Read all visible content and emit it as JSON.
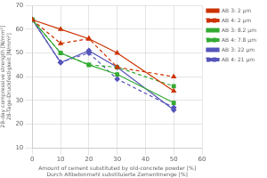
{
  "chart_data": {
    "type": "line",
    "xlabel": "Amount of cement substituted by old-concrete powder [%]\nDurch Altbetonmehl substituierte Zementmenge [%]",
    "ylabel": "28-day compressive strength [N/mm²]\n28-Tage-Druckfestigkeit [N/mm²]",
    "xlim": [
      0,
      60
    ],
    "ylim": [
      10,
      70
    ],
    "xticks": [
      0,
      10,
      20,
      30,
      40,
      50,
      60
    ],
    "yticks": [
      10,
      20,
      30,
      40,
      50,
      60,
      70
    ],
    "grid": true,
    "legend": "right",
    "x": [
      0,
      10,
      20,
      30,
      50
    ],
    "series": [
      {
        "name": "AB 3: 2 μm",
        "color": "#cc3300",
        "marker": "triangle",
        "line_style": "solid",
        "values": [
          64,
          60,
          56,
          50,
          34
        ]
      },
      {
        "name": "AB 4: 2 μm",
        "color": "#cc3300",
        "marker": "triangle",
        "line_style": "dashed",
        "values": [
          64,
          54,
          56,
          44,
          40
        ]
      },
      {
        "name": "AB 3: 8.2 μm",
        "color": "#33aa33",
        "marker": "square",
        "line_style": "solid",
        "values": [
          64,
          50,
          45,
          41,
          29
        ]
      },
      {
        "name": "AB 4: 7.8 μm",
        "color": "#33aa33",
        "marker": "square",
        "line_style": "dashed",
        "values": [
          64,
          50,
          45,
          44,
          36
        ]
      },
      {
        "name": "AB 3: 22 μm",
        "color": "#5555bb",
        "marker": "diamond",
        "line_style": "solid",
        "values": [
          64,
          46,
          51,
          44,
          26
        ]
      },
      {
        "name": "AB 4: 21 μm",
        "color": "#5555bb",
        "marker": "diamond",
        "line_style": "dashed",
        "values": [
          64,
          46,
          50,
          39,
          27
        ]
      }
    ]
  }
}
